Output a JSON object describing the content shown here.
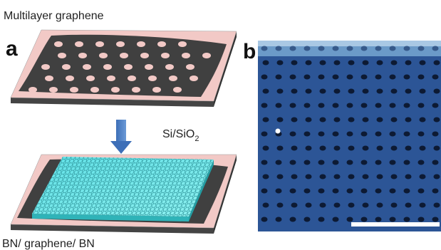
{
  "panel_a": {
    "label": "a",
    "top_label": "Multilayer graphene",
    "substrate_label": {
      "main": "Si/SiO",
      "sub": "2"
    },
    "bottom_label": "BN/ graphene/ BN"
  },
  "panel_b": {
    "label": "b"
  }
}
